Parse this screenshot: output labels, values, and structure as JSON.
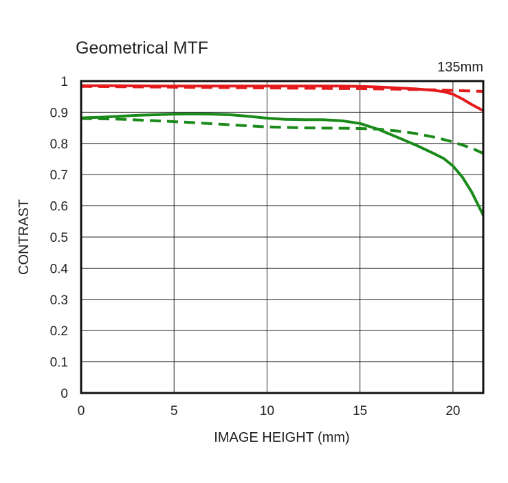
{
  "chart_data": {
    "type": "line",
    "title": "Geometrical MTF",
    "subtitle": "135mm",
    "xlabel": "IMAGE HEIGHT (mm)",
    "ylabel": "CONTRAST",
    "xlim": [
      0,
      21.63
    ],
    "ylim": [
      0,
      1
    ],
    "xticks": [
      0,
      5,
      10,
      15,
      20
    ],
    "yticks": [
      0,
      0.1,
      0.2,
      0.3,
      0.4,
      0.5,
      0.6,
      0.7,
      0.8,
      0.9,
      1
    ],
    "grid": true,
    "series": [
      {
        "color": "#e41a1c",
        "dash": "solid",
        "x": [
          0,
          2,
          4,
          6,
          8,
          10,
          12,
          14,
          15,
          16,
          17,
          18,
          19,
          19.5,
          20,
          20.5,
          21,
          21.63
        ],
        "y": [
          0.985,
          0.985,
          0.984,
          0.984,
          0.984,
          0.984,
          0.984,
          0.984,
          0.983,
          0.981,
          0.978,
          0.975,
          0.97,
          0.966,
          0.958,
          0.943,
          0.925,
          0.905
        ]
      },
      {
        "color": "#e41a1c",
        "dash": "dashed",
        "x": [
          0,
          2,
          4,
          6,
          8,
          10,
          12,
          14,
          15,
          16,
          17,
          18,
          19,
          20,
          21,
          21.63
        ],
        "y": [
          0.983,
          0.982,
          0.981,
          0.98,
          0.979,
          0.978,
          0.977,
          0.976,
          0.976,
          0.975,
          0.974,
          0.973,
          0.972,
          0.97,
          0.968,
          0.967
        ]
      },
      {
        "color": "#1a8a1a",
        "dash": "solid",
        "x": [
          0,
          1,
          2,
          3,
          4,
          5,
          6,
          7,
          8,
          9,
          10,
          11,
          12,
          13,
          14,
          15,
          16,
          17,
          18,
          19,
          19.5,
          20,
          20.5,
          21,
          21.63
        ],
        "y": [
          0.882,
          0.884,
          0.887,
          0.89,
          0.892,
          0.894,
          0.895,
          0.894,
          0.892,
          0.887,
          0.881,
          0.877,
          0.876,
          0.876,
          0.873,
          0.864,
          0.845,
          0.82,
          0.795,
          0.767,
          0.752,
          0.728,
          0.693,
          0.645,
          0.57
        ]
      },
      {
        "color": "#1a8a1a",
        "dash": "dashed",
        "x": [
          0,
          2,
          4,
          6,
          8,
          10,
          12,
          14,
          15,
          16,
          17,
          18,
          19,
          20,
          21,
          21.63
        ],
        "y": [
          0.88,
          0.878,
          0.873,
          0.867,
          0.86,
          0.853,
          0.85,
          0.849,
          0.848,
          0.846,
          0.84,
          0.832,
          0.82,
          0.805,
          0.785,
          0.768
        ]
      }
    ]
  }
}
